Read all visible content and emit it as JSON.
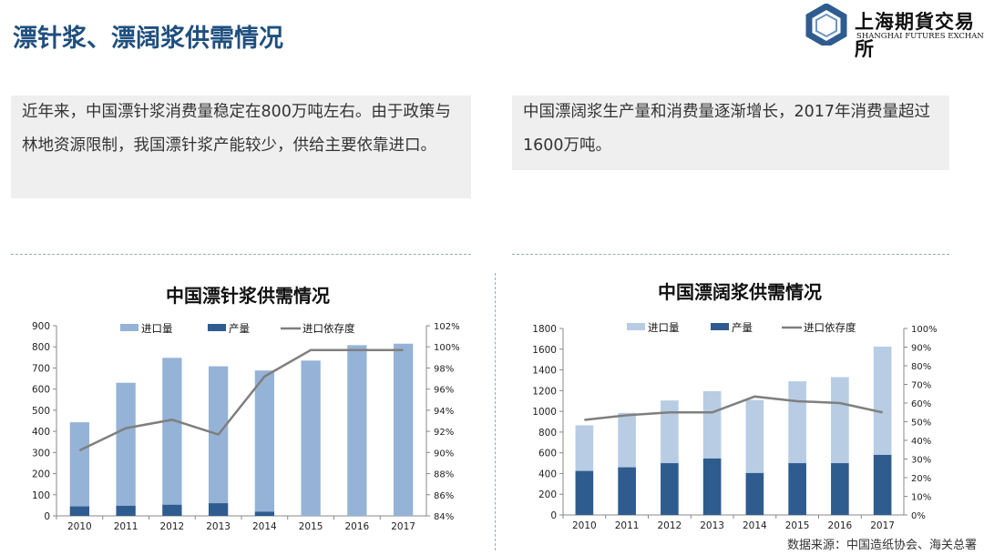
{
  "page_title": "漂针浆、漂阔浆供需情况",
  "logo": {
    "cn": "上海期貨交易所",
    "en": "SHANGHAI FUTURES EXCHANGE"
  },
  "left_text": "近年来，中国漂针浆消费量稳定在800万吨左右。由于政策与林地资源限制，我国漂针浆产能较少，供给主要依靠进口。",
  "right_text": "中国漂阔浆生产量和消费量逐渐增长，2017年消费量超过1600万吨。",
  "source": "数据来源：中国造纸协会、海关总署",
  "colors": {
    "left_import": "#95b3d7",
    "right_import": "#b8cce4",
    "production": "#2f5c8f",
    "dependency": "#7f7f7f"
  },
  "chart_data": [
    {
      "type": "bar+line",
      "stacked": true,
      "title": "中国漂针浆供需情况",
      "categories": [
        "2010",
        "2011",
        "2012",
        "2013",
        "2014",
        "2015",
        "2016",
        "2017"
      ],
      "series": [
        {
          "name": "产量",
          "axis": "left",
          "values": [
            45,
            48,
            53,
            60,
            20,
            0,
            0,
            0
          ]
        },
        {
          "name": "进口量",
          "axis": "left",
          "values": [
            398,
            582,
            695,
            648,
            668,
            735,
            808,
            815
          ]
        },
        {
          "name": "进口依存度",
          "axis": "right",
          "type": "line",
          "values": [
            90.2,
            92.3,
            93.1,
            91.7,
            97.2,
            99.7,
            99.7,
            99.7
          ]
        }
      ],
      "ylim": [
        0,
        900
      ],
      "yticks": [
        "0",
        "100",
        "200",
        "300",
        "400",
        "500",
        "600",
        "700",
        "800",
        "900"
      ],
      "y2lim": [
        84,
        102
      ],
      "y2ticks": [
        "84%",
        "86%",
        "88%",
        "90%",
        "92%",
        "94%",
        "96%",
        "98%",
        "100%",
        "102%"
      ],
      "legend": "top",
      "grid": false
    },
    {
      "type": "bar+line",
      "stacked": true,
      "title": "中国漂阔浆供需情况",
      "categories": [
        "2010",
        "2011",
        "2012",
        "2013",
        "2014",
        "2015",
        "2016",
        "2017"
      ],
      "series": [
        {
          "name": "产量",
          "axis": "left",
          "values": [
            425,
            460,
            500,
            545,
            405,
            500,
            500,
            580
          ]
        },
        {
          "name": "进口量",
          "axis": "left",
          "values": [
            440,
            525,
            605,
            650,
            705,
            790,
            830,
            1045
          ]
        },
        {
          "name": "进口依存度",
          "axis": "right",
          "type": "line",
          "values": [
            51,
            53.5,
            55,
            55,
            63.5,
            61,
            60,
            55
          ]
        }
      ],
      "ylim": [
        0,
        1800
      ],
      "yticks": [
        "0",
        "200",
        "400",
        "600",
        "800",
        "1000",
        "1200",
        "1400",
        "1600",
        "1800"
      ],
      "y2lim": [
        0,
        100
      ],
      "y2ticks": [
        "0%",
        "10%",
        "20%",
        "30%",
        "40%",
        "50%",
        "60%",
        "70%",
        "80%",
        "90%",
        "100%"
      ],
      "legend": "top",
      "grid": false
    }
  ]
}
